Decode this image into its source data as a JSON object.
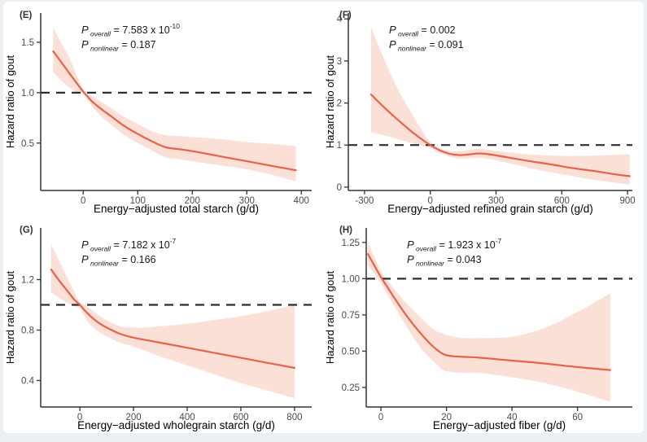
{
  "figure": {
    "description": "Four-panel restricted cubic spline figure of hazard ratio of gout",
    "reference_line_value": 1.0
  },
  "theme": {
    "line_color": "#E8614B",
    "band_color": "#FAE0D6",
    "ref_line_color": "#2F2F2F",
    "axis_color": "#333333",
    "tick_label_color": "#4A4A4A",
    "title_color": "#000000",
    "tag_color": "#333333",
    "background": "#FFFFFF",
    "canvas_edge": "#ECF0F2"
  },
  "chart_data": [
    {
      "type": "line",
      "tag": "(E)",
      "title": "",
      "xlabel": "Energy−adjusted total starch (g/d)",
      "ylabel": "Hazard ratio of gout",
      "legend": "none",
      "grid": false,
      "xlim": [
        -78,
        419
      ],
      "ylim": [
        0.03,
        1.79
      ],
      "xticks": [
        0,
        100,
        200,
        300,
        400
      ],
      "xtick_labels": [
        "0",
        "100",
        "200",
        "300",
        "400"
      ],
      "yticks": [
        0.5,
        1.0,
        1.5
      ],
      "ytick_labels": [
        "0.5",
        "1.0",
        "1.5"
      ],
      "ref_y": 1.0,
      "annotations": [
        {
          "label": "P",
          "sub": "overall",
          "value": "7.583 x 10",
          "exp": "-10"
        },
        {
          "label": "P",
          "sub": "nonlinear",
          "value": "0.187",
          "exp": ""
        }
      ],
      "series": [
        {
          "name": "hazard-ratio-spline",
          "x": [
            -55,
            -40,
            -25,
            -10,
            0,
            15,
            30,
            50,
            75,
            100,
            125,
            150,
            175,
            200,
            250,
            300,
            350,
            390
          ],
          "y": [
            1.41,
            1.3,
            1.19,
            1.08,
            1.01,
            0.92,
            0.85,
            0.77,
            0.67,
            0.59,
            0.52,
            0.46,
            0.44,
            0.42,
            0.37,
            0.32,
            0.27,
            0.23
          ]
        }
      ],
      "band": {
        "x": [
          -55,
          -40,
          -25,
          -10,
          0,
          15,
          30,
          50,
          75,
          100,
          125,
          150,
          175,
          200,
          250,
          300,
          350,
          390
        ],
        "upper": [
          1.64,
          1.49,
          1.34,
          1.15,
          1.03,
          0.97,
          0.92,
          0.85,
          0.76,
          0.69,
          0.62,
          0.58,
          0.57,
          0.56,
          0.54,
          0.51,
          0.49,
          0.47
        ],
        "lower": [
          1.2,
          1.12,
          1.05,
          1.0,
          0.985,
          0.87,
          0.78,
          0.69,
          0.58,
          0.5,
          0.43,
          0.36,
          0.34,
          0.32,
          0.28,
          0.24,
          0.18,
          0.12
        ]
      }
    },
    {
      "type": "line",
      "tag": "(F)",
      "title": "",
      "xlabel": "Energy−adjusted refined grain starch (g/d)",
      "ylabel": "Hazard ratio of gout",
      "legend": "none",
      "grid": false,
      "xlim": [
        -374,
        922
      ],
      "ylim": [
        -0.08,
        4.14
      ],
      "xticks": [
        -300,
        0,
        300,
        600,
        900
      ],
      "xtick_labels": [
        "-300",
        "0",
        "300",
        "600",
        "900"
      ],
      "yticks": [
        0,
        1,
        2,
        3,
        4
      ],
      "ytick_labels": [
        "0",
        "1",
        "2",
        "3",
        "4"
      ],
      "ref_y": 1.0,
      "annotations": [
        {
          "label": "P",
          "sub": "overall",
          "value": "0.002",
          "exp": ""
        },
        {
          "label": "P",
          "sub": "nonlinear",
          "value": "0.091",
          "exp": ""
        }
      ],
      "series": [
        {
          "name": "hazard-ratio-spline",
          "x": [
            -270,
            -225,
            -180,
            -135,
            -90,
            -45,
            0,
            45,
            90,
            135,
            180,
            225,
            270,
            350,
            450,
            550,
            650,
            750,
            850,
            910
          ],
          "y": [
            2.2,
            1.97,
            1.75,
            1.54,
            1.34,
            1.16,
            1.0,
            0.87,
            0.79,
            0.76,
            0.78,
            0.8,
            0.78,
            0.71,
            0.62,
            0.54,
            0.45,
            0.38,
            0.3,
            0.26
          ]
        }
      ],
      "band": {
        "x": [
          -270,
          -225,
          -180,
          -135,
          -90,
          -45,
          0,
          45,
          90,
          135,
          180,
          225,
          270,
          350,
          450,
          550,
          650,
          750,
          850,
          910
        ],
        "upper": [
          3.8,
          3.22,
          2.68,
          2.2,
          1.8,
          1.4,
          1.07,
          0.92,
          0.85,
          0.86,
          0.89,
          0.91,
          0.88,
          0.83,
          0.78,
          0.75,
          0.74,
          0.75,
          0.77,
          0.78
        ],
        "lower": [
          1.3,
          1.25,
          1.19,
          1.12,
          1.06,
          0.99,
          0.93,
          0.81,
          0.72,
          0.68,
          0.69,
          0.7,
          0.67,
          0.58,
          0.46,
          0.35,
          0.26,
          0.17,
          0.1,
          0.06
        ]
      }
    },
    {
      "type": "line",
      "tag": "(G)",
      "title": "",
      "xlabel": "Energy−adjusted wholegrain starch (g/d)",
      "ylabel": "Hazard ratio of gout",
      "legend": "none",
      "grid": false,
      "xlim": [
        -146,
        864
      ],
      "ylim": [
        0.19,
        1.61
      ],
      "xticks": [
        0,
        200,
        400,
        600,
        800
      ],
      "xtick_labels": [
        "0",
        "200",
        "400",
        "600",
        "800"
      ],
      "yticks": [
        0.4,
        0.8,
        1.2
      ],
      "ytick_labels": [
        "0.4",
        "0.8",
        "1.2"
      ],
      "ref_y": 1.0,
      "annotations": [
        {
          "label": "P",
          "sub": "overall",
          "value": "7.182 x 10",
          "exp": "-7"
        },
        {
          "label": "P",
          "sub": "nonlinear",
          "value": "0.166",
          "exp": ""
        }
      ],
      "series": [
        {
          "name": "hazard-ratio-spline",
          "x": [
            -107,
            -80,
            -50,
            -20,
            0,
            25,
            50,
            75,
            100,
            150,
            200,
            250,
            300,
            400,
            500,
            600,
            700,
            800
          ],
          "y": [
            1.28,
            1.2,
            1.12,
            1.04,
            1.0,
            0.94,
            0.89,
            0.85,
            0.82,
            0.77,
            0.74,
            0.72,
            0.7,
            0.66,
            0.62,
            0.58,
            0.54,
            0.5
          ]
        }
      ],
      "band": {
        "x": [
          -107,
          -80,
          -50,
          -20,
          0,
          25,
          50,
          75,
          100,
          150,
          200,
          250,
          300,
          400,
          500,
          600,
          700,
          800
        ],
        "upper": [
          1.48,
          1.36,
          1.23,
          1.1,
          1.02,
          0.99,
          0.95,
          0.91,
          0.88,
          0.83,
          0.82,
          0.82,
          0.83,
          0.85,
          0.88,
          0.91,
          0.95,
          1.0
        ],
        "lower": [
          1.1,
          1.06,
          1.02,
          0.99,
          0.975,
          0.88,
          0.82,
          0.78,
          0.75,
          0.7,
          0.67,
          0.63,
          0.59,
          0.52,
          0.45,
          0.38,
          0.32,
          0.26
        ]
      }
    },
    {
      "type": "line",
      "tag": "(H)",
      "title": "",
      "xlabel": "Energy−adjusted fiber (g/d)",
      "ylabel": "Hazard ratio of gout",
      "legend": "none",
      "grid": false,
      "xlim": [
        -4.5,
        76.75
      ],
      "ylim": [
        0.115,
        1.35
      ],
      "xticks": [
        0,
        20,
        40,
        60
      ],
      "xtick_labels": [
        "0",
        "20",
        "40",
        "60"
      ],
      "yticks": [
        0.25,
        0.5,
        0.75,
        1.0,
        1.25
      ],
      "ytick_labels": [
        "0.25",
        "0.50",
        "0.75",
        "1.00",
        "1.25"
      ],
      "ref_y": 1.0,
      "annotations": [
        {
          "label": "P",
          "sub": "overall",
          "value": "1.923 x 10",
          "exp": "-7"
        },
        {
          "label": "P",
          "sub": "nonlinear",
          "value": "0.043",
          "exp": ""
        }
      ],
      "series": [
        {
          "name": "hazard-ratio-spline",
          "x": [
            -4,
            -2,
            0,
            2,
            4,
            7,
            10,
            13,
            16,
            19,
            22,
            26,
            30,
            40,
            50,
            60,
            70
          ],
          "y": [
            1.17,
            1.09,
            1.01,
            0.94,
            0.87,
            0.77,
            0.68,
            0.6,
            0.53,
            0.48,
            0.465,
            0.46,
            0.455,
            0.435,
            0.415,
            0.39,
            0.37
          ]
        }
      ],
      "band": {
        "x": [
          -4,
          -2,
          0,
          2,
          4,
          7,
          10,
          13,
          16,
          19,
          22,
          26,
          30,
          40,
          50,
          60,
          70
        ],
        "upper": [
          1.25,
          1.15,
          1.05,
          0.99,
          0.93,
          0.85,
          0.78,
          0.71,
          0.65,
          0.62,
          0.6,
          0.59,
          0.59,
          0.6,
          0.66,
          0.77,
          0.9
        ],
        "lower": [
          1.09,
          1.03,
          0.97,
          0.89,
          0.81,
          0.7,
          0.59,
          0.5,
          0.43,
          0.37,
          0.355,
          0.35,
          0.35,
          0.32,
          0.28,
          0.22,
          0.15
        ]
      }
    }
  ]
}
